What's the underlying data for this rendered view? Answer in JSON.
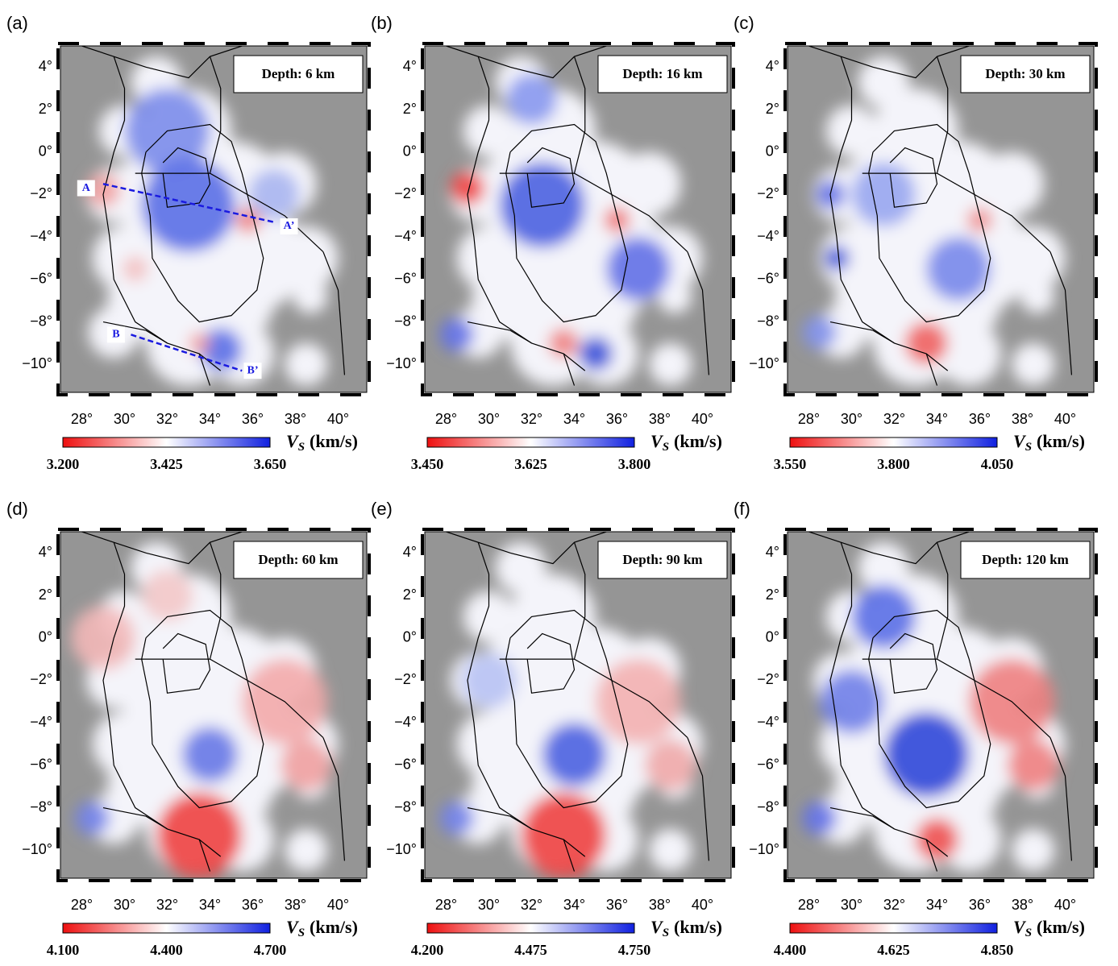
{
  "panels": [
    {
      "label": "(a)",
      "depth": "Depth: 6 km",
      "colorbar_ticks": [
        "3.200",
        "3.425",
        "3.650"
      ],
      "profile_labels": [
        "A",
        "A’",
        "B",
        "B’"
      ]
    },
    {
      "label": "(b)",
      "depth": "Depth: 16 km",
      "colorbar_ticks": [
        "3.450",
        "3.625",
        "3.800"
      ]
    },
    {
      "label": "(c)",
      "depth": "Depth: 30 km",
      "colorbar_ticks": [
        "3.550",
        "3.800",
        "4.050"
      ]
    },
    {
      "label": "(d)",
      "depth": "Depth: 60 km",
      "colorbar_ticks": [
        "4.100",
        "4.400",
        "4.700"
      ]
    },
    {
      "label": "(e)",
      "depth": "Depth: 90 km",
      "colorbar_ticks": [
        "4.200",
        "4.475",
        "4.750"
      ]
    },
    {
      "label": "(f)",
      "depth": "Depth: 120 km",
      "colorbar_ticks": [
        "4.400",
        "4.625",
        "4.850"
      ]
    }
  ],
  "longitude_ticks": [
    "28°",
    "30°",
    "32°",
    "34°",
    "36°",
    "38°",
    "40°"
  ],
  "latitude_ticks": [
    "4°",
    "2°",
    "0°",
    "−2°",
    "−4°",
    "−6°",
    "−8°",
    "−10°"
  ],
  "colorbar_label": {
    "symbol": "V",
    "subscript": "S",
    "unit": "(km/s)"
  }
}
